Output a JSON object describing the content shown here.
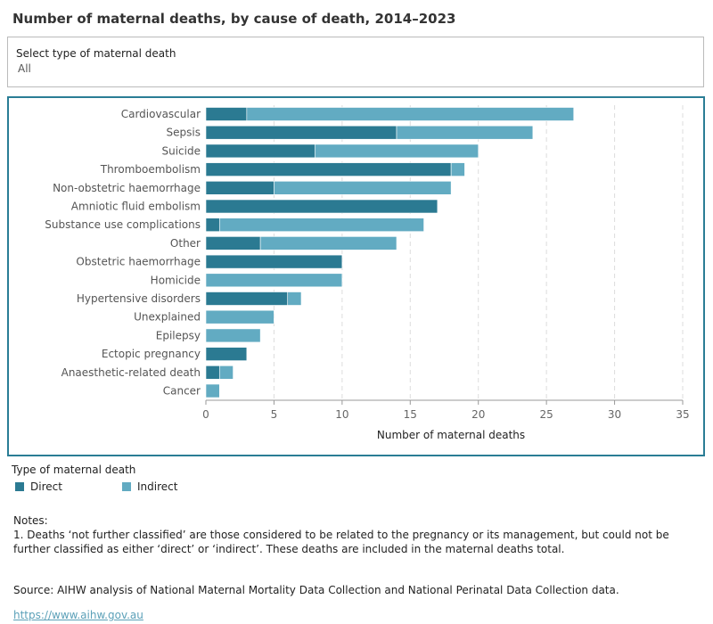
{
  "header": {
    "title": "Number of maternal deaths, by cause of death, 2014–2023"
  },
  "filter": {
    "label": "Select type of maternal death",
    "value": "All"
  },
  "chart_data": {
    "type": "stacked-bar-horizontal",
    "x_label": "Number of maternal deaths",
    "legend_title": "Type of maternal death",
    "categories": [
      "Cardiovascular",
      "Sepsis",
      "Suicide",
      "Thromboembolism",
      "Non-obstetric haemorrhage",
      "Amniotic fluid embolism",
      "Substance use complications",
      "Other",
      "Obstetric haemorrhage",
      "Homicide",
      "Hypertensive disorders",
      "Unexplained",
      "Epilepsy",
      "Ectopic pregnancy",
      "Anaesthetic-related death",
      "Cancer"
    ],
    "series": [
      {
        "name": "Direct",
        "color": "#2b7a92",
        "values": [
          3,
          14,
          8,
          18,
          5,
          17,
          1,
          4,
          10,
          0,
          6,
          0,
          0,
          3,
          1,
          0
        ]
      },
      {
        "name": "Indirect",
        "color": "#62abc2",
        "values": [
          24,
          10,
          12,
          1,
          13,
          0,
          15,
          10,
          0,
          10,
          1,
          5,
          4,
          0,
          1,
          1
        ]
      }
    ],
    "xlim": [
      0,
      35
    ],
    "xticks": [
      0,
      5,
      10,
      15,
      20,
      25,
      30,
      35
    ],
    "grid": true
  },
  "notes": {
    "heading": "Notes:",
    "items": [
      "1. Deaths ‘not further classified’ are those considered to be related to the pregnancy or its management, but could not be further classified as either ‘direct’ or ‘indirect’. These deaths are included in the maternal deaths total."
    ]
  },
  "source": {
    "text": "Source: AIHW analysis of National Maternal Mortality Data Collection and National Perinatal Data Collection data.",
    "link": "https://www.aihw.gov.au"
  }
}
